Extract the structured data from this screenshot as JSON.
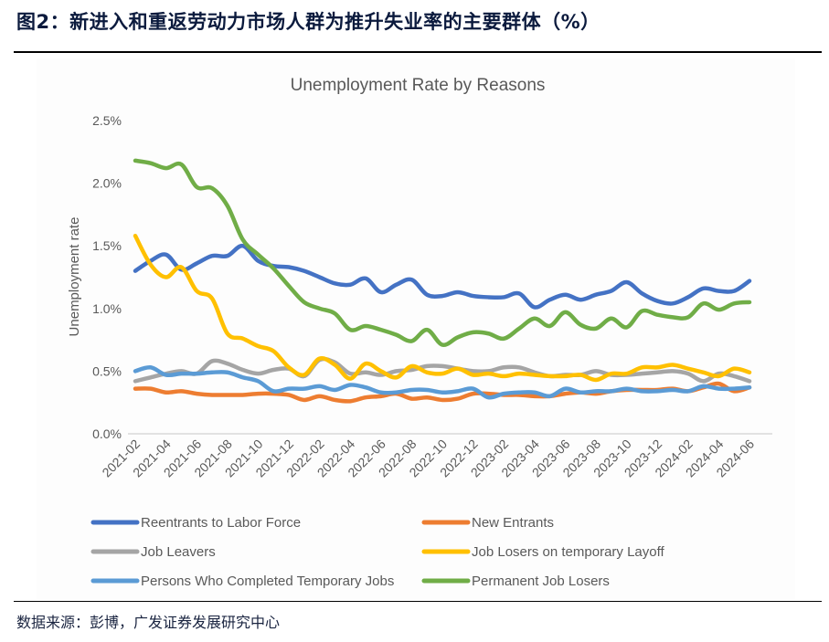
{
  "figure_title": "图2：新进入和重返劳动力市场人群为推升失业率的主要群体（%）",
  "source": "数据来源：彭博，广发证券发展研究中心",
  "chart_data": {
    "type": "line",
    "title": "Unemployment Rate by Reasons",
    "xlabel": "",
    "ylabel": "Unemployment rate",
    "ylim": [
      0,
      2.5
    ],
    "yticks": [
      "0.0%",
      "0.5%",
      "1.0%",
      "1.5%",
      "2.0%",
      "2.5%"
    ],
    "grid": false,
    "legend_position": "bottom",
    "x": [
      "2021-02",
      "2021-03",
      "2021-04",
      "2021-05",
      "2021-06",
      "2021-07",
      "2021-08",
      "2021-09",
      "2021-10",
      "2021-11",
      "2021-12",
      "2022-01",
      "2022-02",
      "2022-03",
      "2022-04",
      "2022-05",
      "2022-06",
      "2022-07",
      "2022-08",
      "2022-09",
      "2022-10",
      "2022-11",
      "2022-12",
      "2023-01",
      "2023-02",
      "2023-03",
      "2023-04",
      "2023-05",
      "2023-06",
      "2023-07",
      "2023-08",
      "2023-09",
      "2023-10",
      "2023-11",
      "2023-12",
      "2024-01",
      "2024-02",
      "2024-03",
      "2024-04",
      "2024-05",
      "2024-06"
    ],
    "xticks": [
      "2021-02",
      "2021-04",
      "2021-06",
      "2021-08",
      "2021-10",
      "2021-12",
      "2022-02",
      "2022-04",
      "2022-06",
      "2022-08",
      "2022-10",
      "2022-12",
      "2023-02",
      "2023-04",
      "2023-06",
      "2023-08",
      "2023-10",
      "2023-12",
      "2024-02",
      "2024-04",
      "2024-06"
    ],
    "series": [
      {
        "name": "Reentrants to Labor Force",
        "color": "#4472c4",
        "values": [
          1.3,
          1.38,
          1.43,
          1.31,
          1.36,
          1.42,
          1.42,
          1.5,
          1.38,
          1.34,
          1.33,
          1.3,
          1.25,
          1.2,
          1.19,
          1.24,
          1.13,
          1.19,
          1.23,
          1.11,
          1.1,
          1.13,
          1.1,
          1.09,
          1.09,
          1.12,
          1.01,
          1.07,
          1.11,
          1.07,
          1.11,
          1.14,
          1.21,
          1.12,
          1.06,
          1.04,
          1.09,
          1.16,
          1.14,
          1.14,
          1.22
        ]
      },
      {
        "name": "New Entrants",
        "color": "#ed7d31",
        "values": [
          0.36,
          0.36,
          0.33,
          0.34,
          0.32,
          0.31,
          0.31,
          0.31,
          0.32,
          0.32,
          0.31,
          0.27,
          0.3,
          0.27,
          0.26,
          0.29,
          0.3,
          0.32,
          0.28,
          0.29,
          0.27,
          0.28,
          0.32,
          0.32,
          0.31,
          0.31,
          0.3,
          0.3,
          0.32,
          0.33,
          0.32,
          0.34,
          0.35,
          0.35,
          0.35,
          0.36,
          0.34,
          0.37,
          0.4,
          0.34,
          0.37
        ]
      },
      {
        "name": "Job Leavers",
        "color": "#a5a5a5",
        "values": [
          0.42,
          0.45,
          0.48,
          0.5,
          0.48,
          0.58,
          0.56,
          0.51,
          0.48,
          0.51,
          0.52,
          0.46,
          0.59,
          0.57,
          0.48,
          0.49,
          0.47,
          0.5,
          0.51,
          0.54,
          0.54,
          0.52,
          0.5,
          0.5,
          0.53,
          0.53,
          0.49,
          0.46,
          0.47,
          0.47,
          0.5,
          0.47,
          0.47,
          0.48,
          0.49,
          0.5,
          0.48,
          0.42,
          0.48,
          0.46,
          0.42
        ]
      },
      {
        "name": "Job Losers on temporary Layoff",
        "color": "#ffc000",
        "values": [
          1.58,
          1.35,
          1.25,
          1.33,
          1.14,
          1.08,
          0.8,
          0.76,
          0.7,
          0.66,
          0.53,
          0.47,
          0.6,
          0.55,
          0.44,
          0.56,
          0.5,
          0.45,
          0.54,
          0.49,
          0.48,
          0.52,
          0.47,
          0.48,
          0.46,
          0.48,
          0.47,
          0.46,
          0.46,
          0.47,
          0.43,
          0.48,
          0.48,
          0.53,
          0.53,
          0.55,
          0.52,
          0.49,
          0.46,
          0.52,
          0.49
        ]
      },
      {
        "name": "Persons Who Completed Temporary Jobs",
        "color": "#5b9bd5",
        "values": [
          0.5,
          0.53,
          0.47,
          0.48,
          0.48,
          0.49,
          0.49,
          0.45,
          0.42,
          0.34,
          0.36,
          0.36,
          0.38,
          0.35,
          0.39,
          0.37,
          0.33,
          0.33,
          0.35,
          0.35,
          0.33,
          0.34,
          0.36,
          0.29,
          0.32,
          0.33,
          0.33,
          0.3,
          0.36,
          0.33,
          0.34,
          0.34,
          0.36,
          0.34,
          0.34,
          0.35,
          0.34,
          0.38,
          0.36,
          0.36,
          0.37
        ]
      },
      {
        "name": "Permanent Job Losers",
        "color": "#70ad47",
        "values": [
          2.18,
          2.16,
          2.12,
          2.15,
          1.97,
          1.96,
          1.82,
          1.55,
          1.43,
          1.32,
          1.18,
          1.05,
          1.0,
          0.96,
          0.83,
          0.86,
          0.83,
          0.79,
          0.74,
          0.83,
          0.71,
          0.77,
          0.81,
          0.8,
          0.76,
          0.84,
          0.92,
          0.86,
          0.97,
          0.87,
          0.84,
          0.92,
          0.85,
          0.98,
          0.95,
          0.93,
          0.93,
          1.04,
          0.99,
          1.04,
          1.05
        ]
      }
    ]
  }
}
